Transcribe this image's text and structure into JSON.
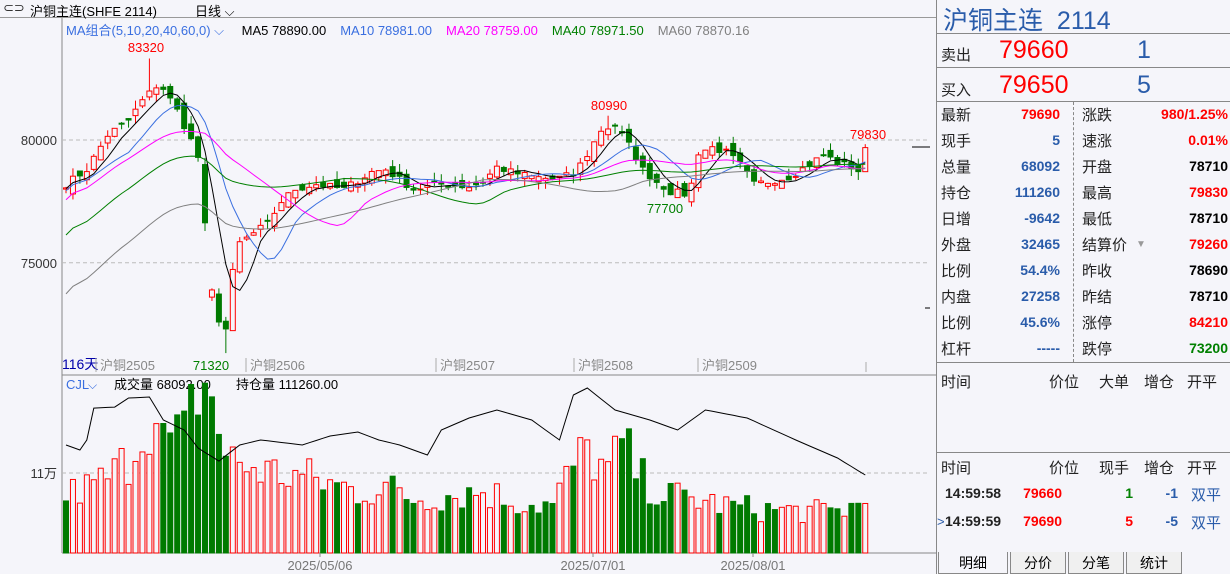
{
  "header": {
    "title": "沪铜主连(SHFE 2114)",
    "period": "日线",
    "ma_label": "MA组合(5,10,20,40,60,0)",
    "ma": [
      {
        "name": "MA5",
        "value": "78890.00",
        "color": "#000000"
      },
      {
        "name": "MA10",
        "value": "78981.00",
        "color": "#3a6fe0"
      },
      {
        "name": "MA20",
        "value": "78759.00",
        "color": "#ff00ff"
      },
      {
        "name": "MA40",
        "value": "78971.50",
        "color": "#008000"
      },
      {
        "name": "MA60",
        "value": "78870.16",
        "color": "#808080"
      }
    ]
  },
  "axis": {
    "price_ticks": [
      "80000",
      "75000"
    ],
    "vol_tick": "11万",
    "days": "116天",
    "contracts": [
      "沪铜2505",
      "沪铜2506",
      "沪铜2507",
      "沪铜2508",
      "沪铜2509"
    ],
    "dates": [
      "2025/05/06",
      "2025/07/01",
      "2025/08/01"
    ]
  },
  "annotations": {
    "high1": "83320",
    "low1": "71320",
    "high2": "80990",
    "low2": "77700",
    "last_high": "79830"
  },
  "volume": {
    "indicator": "CJL",
    "vol_label": "成交量 68092.00",
    "oi_label": "持仓量 111260.00"
  },
  "colors": {
    "up": "#ff0000",
    "down": "#007a00",
    "accent": "#2a5caa"
  },
  "kline": {
    "close_anchors": [
      [
        0,
        78200
      ],
      [
        3,
        78800
      ],
      [
        6,
        80200
      ],
      [
        9,
        80800
      ],
      [
        11,
        81600
      ],
      [
        13,
        82200
      ],
      [
        14,
        82100
      ],
      [
        16,
        81200
      ],
      [
        18,
        80000
      ],
      [
        19,
        79300
      ],
      [
        20,
        76500
      ],
      [
        21,
        73800
      ],
      [
        22,
        72700
      ],
      [
        23,
        72300
      ],
      [
        24,
        74600
      ],
      [
        25,
        75800
      ],
      [
        27,
        76200
      ],
      [
        29,
        76600
      ],
      [
        31,
        77500
      ],
      [
        33,
        78000
      ],
      [
        36,
        78200
      ],
      [
        40,
        78000
      ],
      [
        44,
        78700
      ],
      [
        46,
        78800
      ],
      [
        50,
        78000
      ],
      [
        54,
        78200
      ],
      [
        58,
        78100
      ],
      [
        60,
        78300
      ],
      [
        62,
        78900
      ],
      [
        64,
        78700
      ],
      [
        67,
        78500
      ],
      [
        70,
        78400
      ],
      [
        73,
        78600
      ],
      [
        75,
        79400
      ],
      [
        77,
        80400
      ],
      [
        79,
        80600
      ],
      [
        81,
        79800
      ],
      [
        83,
        78800
      ],
      [
        85,
        78300
      ],
      [
        87,
        77900
      ],
      [
        89,
        77800
      ],
      [
        90,
        78200
      ],
      [
        91,
        79500
      ],
      [
        93,
        79700
      ],
      [
        95,
        79500
      ],
      [
        97,
        79000
      ],
      [
        99,
        78200
      ],
      [
        101,
        78300
      ],
      [
        104,
        78500
      ],
      [
        107,
        79000
      ],
      [
        109,
        79400
      ],
      [
        111,
        79100
      ],
      [
        113,
        78900
      ],
      [
        114,
        78750
      ],
      [
        115,
        79690
      ]
    ],
    "volume_anchors": [
      [
        0,
        80000
      ],
      [
        4,
        92000
      ],
      [
        7,
        110000
      ],
      [
        9,
        130000
      ],
      [
        12,
        190000
      ],
      [
        14,
        150000
      ],
      [
        17,
        160000
      ],
      [
        19,
        230000
      ],
      [
        21,
        220000
      ],
      [
        23,
        130000
      ],
      [
        26,
        120000
      ],
      [
        30,
        110000
      ],
      [
        34,
        105000
      ],
      [
        38,
        95000
      ],
      [
        42,
        85000
      ],
      [
        46,
        90000
      ],
      [
        50,
        75000
      ],
      [
        55,
        80000
      ],
      [
        60,
        85000
      ],
      [
        65,
        70000
      ],
      [
        70,
        65000
      ],
      [
        73,
        120000
      ],
      [
        75,
        140000
      ],
      [
        78,
        110000
      ],
      [
        80,
        150000
      ],
      [
        83,
        100000
      ],
      [
        86,
        80000
      ],
      [
        90,
        75000
      ],
      [
        95,
        65000
      ],
      [
        100,
        60000
      ],
      [
        105,
        58000
      ],
      [
        110,
        56000
      ],
      [
        115,
        68092
      ]
    ],
    "oi_anchors": [
      [
        0,
        143000
      ],
      [
        2,
        137700
      ],
      [
        3,
        148300
      ],
      [
        4,
        182000
      ],
      [
        7,
        183000
      ],
      [
        9,
        192600
      ],
      [
        12,
        193700
      ],
      [
        14,
        169400
      ],
      [
        17,
        158800
      ],
      [
        19,
        139800
      ],
      [
        22,
        126000
      ],
      [
        25,
        143000
      ],
      [
        28,
        148300
      ],
      [
        34,
        143000
      ],
      [
        38,
        152500
      ],
      [
        42,
        156700
      ],
      [
        45,
        148300
      ],
      [
        48,
        143000
      ],
      [
        52,
        132400
      ],
      [
        54,
        158800
      ],
      [
        58,
        171500
      ],
      [
        62,
        180000
      ],
      [
        67,
        169400
      ],
      [
        71,
        148300
      ],
      [
        73,
        195800
      ],
      [
        75,
        203200
      ],
      [
        79,
        180000
      ],
      [
        84,
        169400
      ],
      [
        88,
        158800
      ],
      [
        92,
        180000
      ],
      [
        98,
        171500
      ],
      [
        105,
        148300
      ],
      [
        111,
        129200
      ],
      [
        115,
        111260
      ]
    ]
  },
  "quote": {
    "name": "沪铜主连",
    "code": "2114",
    "sell": {
      "label": "卖出",
      "price": "79660",
      "qty": "1"
    },
    "buy": {
      "label": "买入",
      "price": "79650",
      "qty": "5"
    },
    "left": [
      {
        "k": "最新",
        "v": "79690",
        "c": "red"
      },
      {
        "k": "现手",
        "v": "5",
        "c": "blue"
      },
      {
        "k": "总量",
        "v": "68092",
        "c": "blue"
      },
      {
        "k": "持仓",
        "v": "111260",
        "c": "blue"
      },
      {
        "k": "日增",
        "v": "-9642",
        "c": "blue"
      },
      {
        "k": "外盘",
        "v": "32465",
        "c": "blue"
      },
      {
        "k": "比例",
        "v": "54.4%",
        "c": "blue"
      },
      {
        "k": "内盘",
        "v": "27258",
        "c": "blue"
      },
      {
        "k": "比例",
        "v": "45.6%",
        "c": "blue"
      },
      {
        "k": "杠杆",
        "v": "-----",
        "c": "blue"
      }
    ],
    "right": [
      {
        "k": "涨跌",
        "v": "980/1.25%",
        "c": "red"
      },
      {
        "k": "速涨",
        "v": "0.01%",
        "c": "red"
      },
      {
        "k": "开盘",
        "v": "78710",
        "c": "blk"
      },
      {
        "k": "最高",
        "v": "79830",
        "c": "red"
      },
      {
        "k": "最低",
        "v": "78710",
        "c": "blk"
      },
      {
        "k": "结算价",
        "v": "79260",
        "c": "red"
      },
      {
        "k": "昨收",
        "v": "78690",
        "c": "blk"
      },
      {
        "k": "昨结",
        "v": "78710",
        "c": "blk"
      },
      {
        "k": "涨停",
        "v": "84210",
        "c": "red"
      },
      {
        "k": "跌停",
        "v": "73200",
        "c": "green"
      }
    ]
  },
  "big_orders": {
    "headers": [
      "时间",
      "价位",
      "大单",
      "增仓",
      "开平"
    ]
  },
  "ticks": {
    "headers": [
      "时间",
      "价位",
      "现手",
      "增仓",
      "开平"
    ],
    "rows": [
      {
        "time": "14:59:58",
        "price": "79660",
        "qty": "1",
        "qc": "green",
        "oi": "-1",
        "type": "双平",
        "cur": ""
      },
      {
        "time": "14:59:59",
        "price": "79690",
        "qty": "5",
        "qc": "red",
        "oi": "-5",
        "type": "双平",
        "cur": ">"
      }
    ]
  },
  "tabs": [
    "明细",
    "分价",
    "分笔",
    "统计"
  ]
}
